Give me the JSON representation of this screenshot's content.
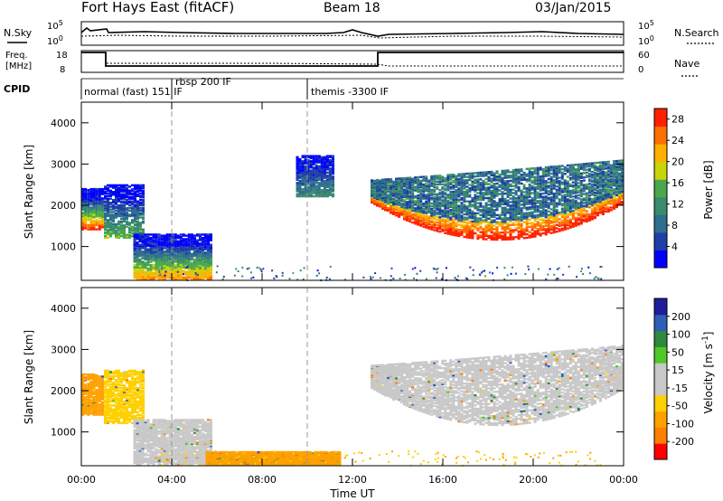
{
  "header": {
    "station": "Fort Hays East (fitACF)",
    "beam": "Beam 18",
    "date": "03/Jan/2015"
  },
  "param_panel": {
    "nsky_label": "N.Sky",
    "nsearch_label": "N.Search",
    "freq_label_1": "Freq.",
    "freq_label_2": "[MHz]",
    "nave_label": "Nave",
    "cpid_label": "CPID",
    "n_ticks_left": [
      "10^5",
      "10^0"
    ],
    "n_ticks_right": [
      "10^5",
      "10^0"
    ],
    "freq_ticks": [
      "18",
      "8"
    ],
    "nave_ticks": [
      "60",
      "0"
    ]
  },
  "cpid_segments": [
    {
      "label": "normal (fast) 151 IF",
      "start_h": 0.0
    },
    {
      "label": "rbsp 200 IF",
      "start_h": 4.0
    },
    {
      "label": "themis -3300 IF",
      "start_h": 10.0
    }
  ],
  "colors": {
    "power": [
      "#0000ff",
      "#1e3ea8",
      "#2e6e8e",
      "#3a8a6e",
      "#4aa84a",
      "#c8d40a",
      "#ffb000",
      "#ff7000",
      "#ff2000"
    ],
    "velocity": [
      "#ff0000",
      "#ff8000",
      "#ffa000",
      "#ffd000",
      "#c8c8c8",
      "#c8c8c8",
      "#50c828",
      "#2e8a3c",
      "#2e5eb8",
      "#1e1e9c"
    ]
  },
  "chart_data": [
    {
      "type": "heatmap",
      "title": "Power",
      "xlabel": "",
      "ylabel": "Slant Range [km]",
      "x_ticks": [
        "00:00",
        "04:00",
        "08:00",
        "12:00",
        "16:00",
        "20:00",
        "00:00"
      ],
      "xlim_hours": [
        0,
        24
      ],
      "y_ticks": [
        1000,
        2000,
        3000,
        4000
      ],
      "ylim_km": [
        180,
        4500
      ],
      "colorbar": {
        "label": "Power [dB]",
        "ticks": [
          4,
          8,
          12,
          16,
          20,
          24,
          28
        ],
        "range": [
          0,
          30
        ]
      },
      "echo_regions": [
        {
          "t": [
            0.0,
            1.0
          ],
          "range_km": [
            1400,
            2400
          ],
          "peak_db": 26
        },
        {
          "t": [
            1.0,
            2.8
          ],
          "range_km": [
            1200,
            2500
          ],
          "peak_db": 14
        },
        {
          "t": [
            2.3,
            5.8
          ],
          "range_km": [
            200,
            1300
          ],
          "peak_db": 22
        },
        {
          "t": [
            9.5,
            11.2
          ],
          "range_km": [
            2200,
            3200
          ],
          "peak_db": 10
        },
        {
          "t": [
            12.8,
            24.0
          ],
          "range_km": [
            1150,
            3100
          ],
          "peak_db": 28
        }
      ]
    },
    {
      "type": "heatmap",
      "title": "Velocity",
      "xlabel": "Time UT",
      "ylabel": "Slant Range [km]",
      "x_ticks": [
        "00:00",
        "04:00",
        "08:00",
        "12:00",
        "16:00",
        "20:00",
        "00:00"
      ],
      "xlim_hours": [
        0,
        24
      ],
      "y_ticks": [
        1000,
        2000,
        3000,
        4000
      ],
      "ylim_km": [
        180,
        4500
      ],
      "colorbar": {
        "label": "Velocity [m s^-1]",
        "ticks": [
          200,
          100,
          50,
          15,
          -15,
          -50,
          -100,
          -200
        ],
        "range": [
          -250,
          250
        ]
      },
      "echo_regions": [
        {
          "t": [
            0.0,
            1.0
          ],
          "range_km": [
            1400,
            2400
          ],
          "velocity": -60
        },
        {
          "t": [
            1.0,
            2.8
          ],
          "range_km": [
            1200,
            2500
          ],
          "velocity": -40
        },
        {
          "t": [
            2.3,
            5.8
          ],
          "range_km": [
            200,
            1300
          ],
          "velocity": 0
        },
        {
          "t": [
            5.5,
            11.5
          ],
          "range_km": [
            180,
            500
          ],
          "velocity": -70
        },
        {
          "t": [
            12.8,
            24.0
          ],
          "range_km": [
            1150,
            3100
          ],
          "velocity": 0
        }
      ]
    }
  ]
}
